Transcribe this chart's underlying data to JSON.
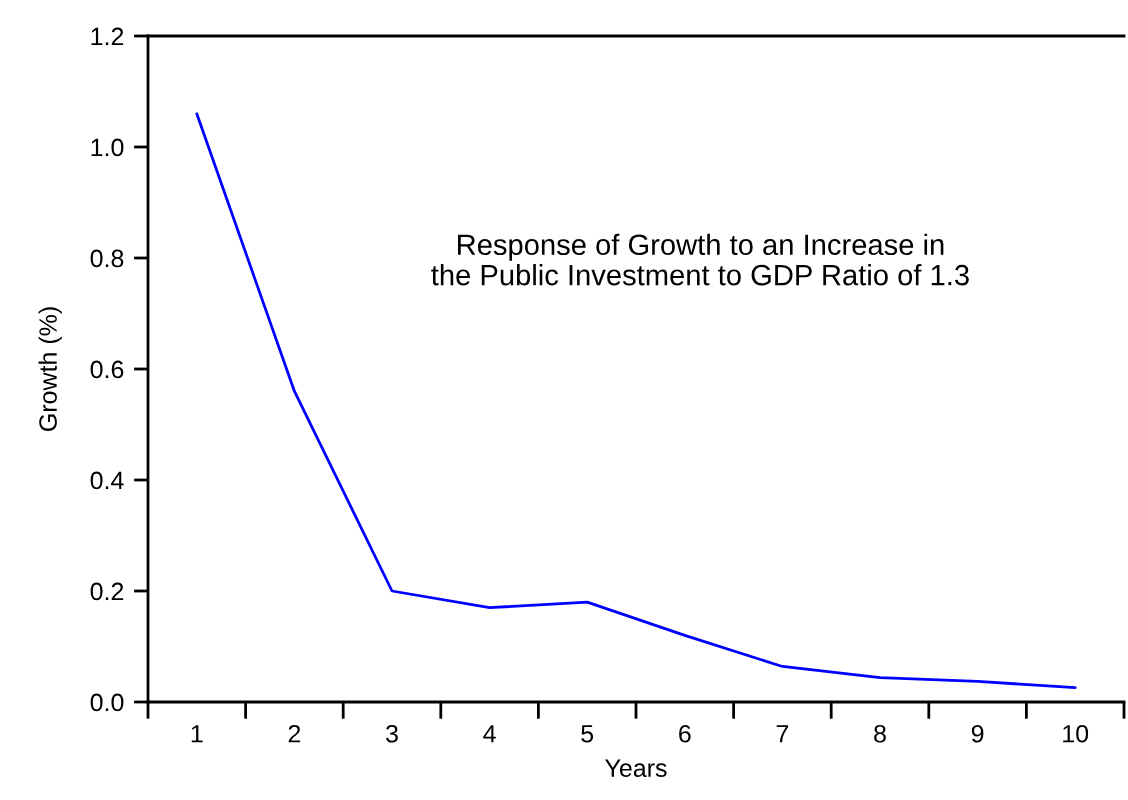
{
  "chart_data": {
    "type": "line",
    "xlabel": "Years",
    "ylabel": "Growth (%)",
    "annotations": [
      "Response of Growth to an Increase in\nthe Public Investment to GDP Ratio of 1.3"
    ],
    "categories": [
      "1",
      "2",
      "3",
      "4",
      "5",
      "6",
      "7",
      "8",
      "9",
      "10"
    ],
    "series": [
      {
        "color": "#0000ff",
        "values": [
          1.06,
          0.56,
          0.2,
          0.17,
          0.18,
          0.12,
          0.064,
          0.044,
          0.037,
          0.026
        ]
      }
    ],
    "ylim": [
      0,
      1.2
    ],
    "yticks": [
      {
        "value": 0,
        "label": "0.0"
      },
      0.2,
      0.4,
      0.6,
      0.8,
      {
        "value": 1,
        "label": "1.0"
      },
      1.2
    ],
    "grid": false,
    "marker": "none",
    "line_style": "solid"
  }
}
